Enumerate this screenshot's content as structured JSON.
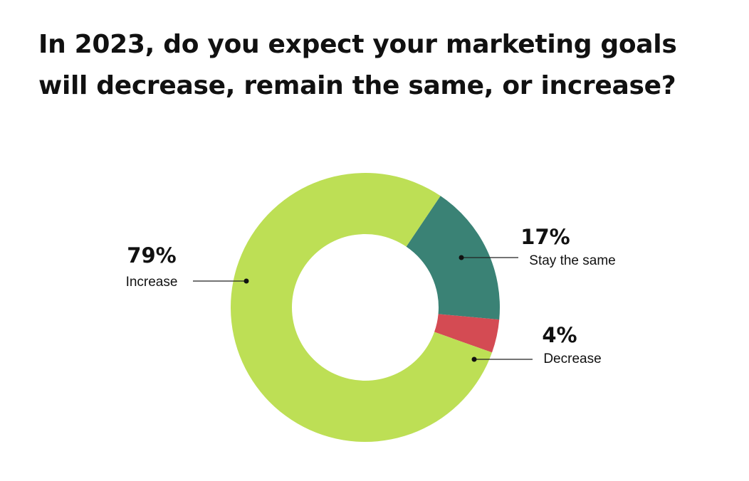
{
  "title": "In 2023, do you expect your marketing goals will decrease, remain the same, or increase?",
  "chart_data": {
    "type": "pie",
    "variant": "donut",
    "title": "In 2023, do you expect your marketing goals will decrease, remain the same, or increase?",
    "slices": [
      {
        "label": "Increase",
        "value": 79,
        "value_label": "79%",
        "color": "#bddf55"
      },
      {
        "label": "Stay the same",
        "value": 17,
        "value_label": "17%",
        "color": "#3a8275"
      },
      {
        "label": "Decrease",
        "value": 4,
        "value_label": "4%",
        "color": "#d44b53"
      }
    ],
    "legend": "none"
  }
}
